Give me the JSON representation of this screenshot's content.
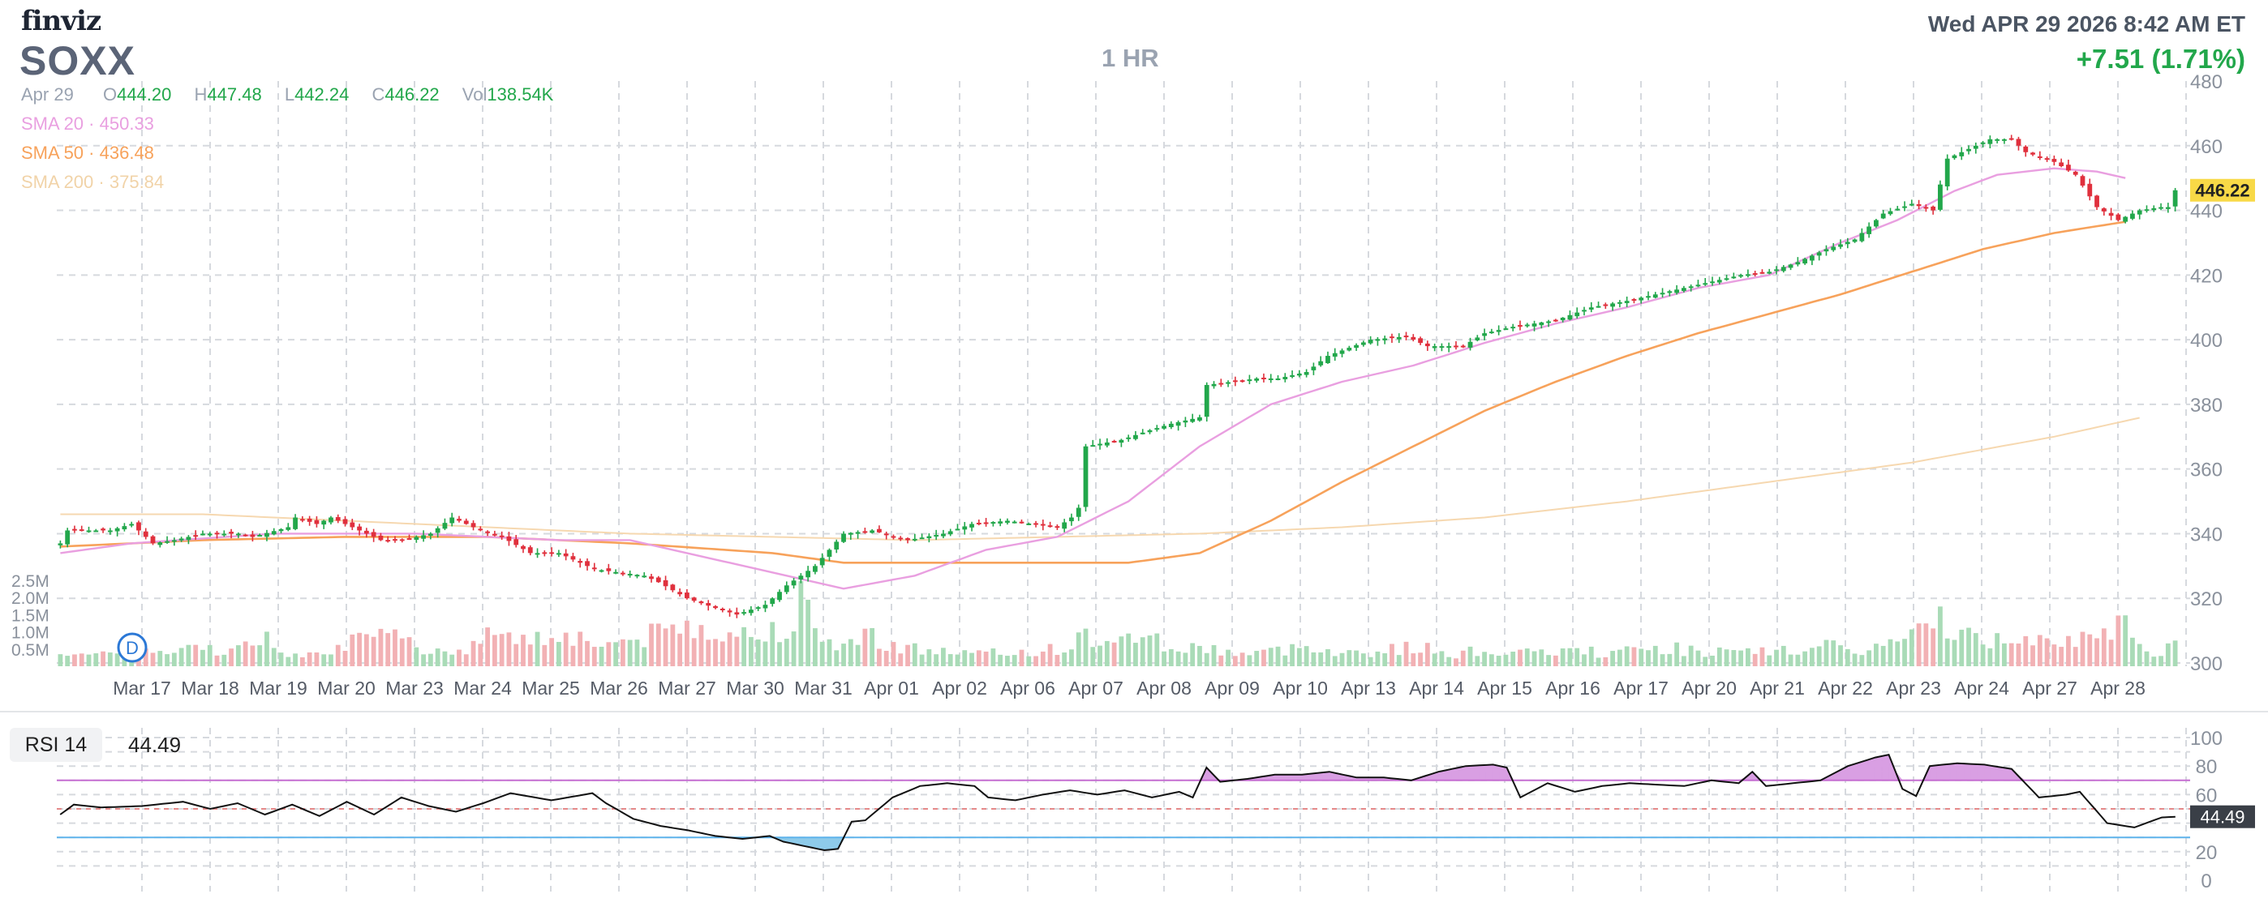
{
  "header": {
    "logo": "finviz",
    "ticker": "SOXX",
    "timeframe": "1 HR",
    "datetime": "Wed APR 29 2026 8:42 AM ET",
    "change": "+7.51 (1.71%)"
  },
  "ohlc": {
    "date": "Apr 29",
    "open_label": "O",
    "open": "444.20",
    "high_label": "H",
    "high": "447.48",
    "low_label": "L",
    "low": "442.24",
    "close_label": "C",
    "close": "446.22",
    "vol_label": "Vol",
    "vol": "138.54K"
  },
  "sma": [
    {
      "label": "SMA 20",
      "value": "450.33",
      "color": "#e99fe0"
    },
    {
      "label": "SMA 50",
      "value": "436.48",
      "color": "#f7a25b"
    },
    {
      "label": "SMA 200",
      "value": "375.84",
      "color": "#f6d8b0"
    }
  ],
  "colors": {
    "up": "#22a74b",
    "down": "#e0303d",
    "vol_up": "#a9dbb7",
    "vol_down": "#f2b1b4",
    "rsi_line": "#111111",
    "rsi_over": "#d99fe3",
    "rsi_under": "#8ecbea",
    "last_price_bg": "#f8d947"
  },
  "rsi": {
    "label": "RSI 14",
    "value": "44.49",
    "last_tag": "44.49"
  },
  "markers": {
    "dividend": "D"
  },
  "last_price_tag": "446.22",
  "chart_data": {
    "type": "candlestick",
    "title": "SOXX",
    "price_axis": {
      "ticks": [
        300,
        320,
        340,
        360,
        380,
        400,
        420,
        440,
        460,
        480
      ],
      "ylim": [
        296,
        481
      ]
    },
    "volume_axis": {
      "ticks": [
        "0.5M",
        "1.0M",
        "1.5M",
        "2.0M",
        "2.5M"
      ]
    },
    "rsi_axis": {
      "ticks": [
        0,
        20,
        40,
        60,
        80,
        100
      ],
      "overbought": 70,
      "oversold": 30,
      "mid": 50
    },
    "dates": [
      "Mar 17",
      "Mar 18",
      "Mar 19",
      "Mar 20",
      "Mar 23",
      "Mar 24",
      "Mar 25",
      "Mar 26",
      "Mar 27",
      "Mar 30",
      "Mar 31",
      "Apr 01",
      "Apr 02",
      "Apr 06",
      "Apr 07",
      "Apr 08",
      "Apr 09",
      "Apr 10",
      "Apr 13",
      "Apr 14",
      "Apr 15",
      "Apr 16",
      "Apr 17",
      "Apr 20",
      "Apr 21",
      "Apr 22",
      "Apr 23",
      "Apr 24",
      "Apr 27",
      "Apr 28",
      "Apr 29"
    ],
    "close_anchors": [
      [
        0,
        337
      ],
      [
        1,
        341
      ],
      [
        7,
        341
      ],
      [
        10,
        343
      ],
      [
        13,
        337
      ],
      [
        16,
        338
      ],
      [
        20,
        340
      ],
      [
        25,
        340
      ],
      [
        27,
        339
      ],
      [
        32,
        342
      ],
      [
        33,
        345
      ],
      [
        36,
        343
      ],
      [
        38,
        345
      ],
      [
        40,
        343
      ],
      [
        45,
        338
      ],
      [
        48,
        338
      ],
      [
        52,
        340
      ],
      [
        55,
        345
      ],
      [
        58,
        342
      ],
      [
        62,
        339
      ],
      [
        66,
        334
      ],
      [
        70,
        334
      ],
      [
        75,
        329
      ],
      [
        82,
        327
      ],
      [
        84,
        325
      ],
      [
        88,
        320
      ],
      [
        92,
        317
      ],
      [
        95,
        315
      ],
      [
        99,
        318
      ],
      [
        102,
        324
      ],
      [
        106,
        330
      ],
      [
        110,
        340
      ],
      [
        114,
        341
      ],
      [
        119,
        338
      ],
      [
        124,
        340
      ],
      [
        128,
        343
      ],
      [
        133,
        344
      ],
      [
        140,
        342
      ],
      [
        142,
        345
      ],
      [
        143,
        348
      ],
      [
        144,
        367
      ],
      [
        149,
        369
      ],
      [
        153,
        372
      ],
      [
        156,
        374
      ],
      [
        160,
        376
      ],
      [
        161,
        386
      ],
      [
        168,
        388
      ],
      [
        171,
        388
      ],
      [
        175,
        390
      ],
      [
        178,
        395
      ],
      [
        184,
        400
      ],
      [
        189,
        401
      ],
      [
        192,
        398
      ],
      [
        197,
        398
      ],
      [
        200,
        402
      ],
      [
        204,
        404
      ],
      [
        210,
        406
      ],
      [
        215,
        410
      ],
      [
        220,
        412
      ],
      [
        224,
        414
      ],
      [
        228,
        416
      ],
      [
        232,
        418
      ],
      [
        236,
        420
      ],
      [
        240,
        421
      ],
      [
        244,
        424
      ],
      [
        248,
        428
      ],
      [
        252,
        431
      ],
      [
        256,
        439
      ],
      [
        260,
        442
      ],
      [
        263,
        440
      ],
      [
        265,
        456
      ],
      [
        268,
        459
      ],
      [
        271,
        462
      ],
      [
        274,
        462
      ],
      [
        276,
        458
      ],
      [
        280,
        455
      ],
      [
        283,
        451
      ],
      [
        286,
        441
      ],
      [
        289,
        437
      ],
      [
        292,
        440
      ],
      [
        295,
        441
      ],
      [
        297,
        441
      ]
    ],
    "volume_anchors": [
      [
        0,
        0.55
      ],
      [
        5,
        0.3
      ],
      [
        10,
        0.5
      ],
      [
        15,
        0.4
      ],
      [
        20,
        0.6
      ],
      [
        25,
        0.5
      ],
      [
        28,
        1.0
      ],
      [
        32,
        0.4
      ],
      [
        38,
        0.6
      ],
      [
        42,
        0.8
      ],
      [
        48,
        0.9
      ],
      [
        52,
        0.5
      ],
      [
        58,
        0.6
      ],
      [
        62,
        1.3
      ],
      [
        66,
        0.8
      ],
      [
        70,
        1.1
      ],
      [
        76,
        0.7
      ],
      [
        82,
        0.9
      ],
      [
        86,
        1.2
      ],
      [
        90,
        1.3
      ],
      [
        94,
        1.1
      ],
      [
        98,
        0.9
      ],
      [
        102,
        1.4
      ],
      [
        104,
        2.2
      ],
      [
        106,
        0.9
      ],
      [
        110,
        0.7
      ],
      [
        114,
        1.0
      ],
      [
        118,
        0.6
      ],
      [
        122,
        0.5
      ],
      [
        128,
        0.4
      ],
      [
        132,
        0.4
      ],
      [
        138,
        0.5
      ],
      [
        142,
        0.6
      ],
      [
        144,
        1.0
      ],
      [
        148,
        0.6
      ],
      [
        152,
        1.2
      ],
      [
        156,
        0.5
      ],
      [
        160,
        0.6
      ],
      [
        166,
        0.4
      ],
      [
        172,
        0.5
      ],
      [
        176,
        0.7
      ],
      [
        180,
        0.4
      ],
      [
        186,
        0.5
      ],
      [
        190,
        0.6
      ],
      [
        196,
        0.4
      ],
      [
        200,
        0.5
      ],
      [
        206,
        0.4
      ],
      [
        212,
        0.5
      ],
      [
        218,
        0.4
      ],
      [
        224,
        0.6
      ],
      [
        230,
        0.5
      ],
      [
        236,
        0.4
      ],
      [
        242,
        0.5
      ],
      [
        248,
        0.6
      ],
      [
        254,
        0.5
      ],
      [
        258,
        0.8
      ],
      [
        262,
        1.1
      ],
      [
        264,
        1.6
      ],
      [
        266,
        1.2
      ],
      [
        268,
        0.9
      ],
      [
        272,
        0.8
      ],
      [
        276,
        1.0
      ],
      [
        278,
        1.1
      ],
      [
        282,
        0.9
      ],
      [
        286,
        0.7
      ],
      [
        288,
        1.4
      ],
      [
        290,
        1.2
      ],
      [
        292,
        0.6
      ],
      [
        295,
        0.4
      ],
      [
        297,
        0.9
      ]
    ],
    "rsi_anchors": [
      [
        0,
        46
      ],
      [
        2,
        53
      ],
      [
        6,
        51
      ],
      [
        12,
        52
      ],
      [
        18,
        55
      ],
      [
        22,
        50
      ],
      [
        26,
        54
      ],
      [
        30,
        46
      ],
      [
        34,
        53
      ],
      [
        38,
        45
      ],
      [
        42,
        55
      ],
      [
        46,
        46
      ],
      [
        50,
        58
      ],
      [
        54,
        52
      ],
      [
        58,
        48
      ],
      [
        62,
        54
      ],
      [
        66,
        61
      ],
      [
        72,
        56
      ],
      [
        78,
        61
      ],
      [
        80,
        54
      ],
      [
        84,
        43
      ],
      [
        88,
        38
      ],
      [
        92,
        35
      ],
      [
        96,
        31
      ],
      [
        100,
        29
      ],
      [
        104,
        31
      ],
      [
        106,
        27
      ],
      [
        108,
        25
      ],
      [
        110,
        23
      ],
      [
        112,
        21
      ],
      [
        114,
        22
      ],
      [
        116,
        41
      ],
      [
        118,
        42
      ],
      [
        122,
        58
      ],
      [
        126,
        66
      ],
      [
        130,
        68
      ],
      [
        134,
        66
      ],
      [
        136,
        58
      ],
      [
        140,
        56
      ],
      [
        144,
        60
      ],
      [
        148,
        63
      ],
      [
        152,
        60
      ],
      [
        156,
        63
      ],
      [
        160,
        58
      ],
      [
        164,
        62
      ],
      [
        166,
        58
      ],
      [
        168,
        79
      ],
      [
        170,
        69
      ],
      [
        174,
        71
      ],
      [
        178,
        74
      ],
      [
        182,
        74
      ],
      [
        186,
        76
      ],
      [
        190,
        72
      ],
      [
        194,
        72
      ],
      [
        198,
        70
      ],
      [
        202,
        76
      ],
      [
        206,
        80
      ],
      [
        210,
        81
      ],
      [
        212,
        79
      ],
      [
        214,
        58
      ],
      [
        218,
        68
      ],
      [
        222,
        62
      ],
      [
        226,
        66
      ],
      [
        230,
        68
      ],
      [
        234,
        67
      ],
      [
        238,
        66
      ],
      [
        242,
        70
      ],
      [
        246,
        68
      ],
      [
        248,
        76
      ],
      [
        250,
        66
      ],
      [
        254,
        68
      ],
      [
        258,
        70
      ],
      [
        262,
        80
      ],
      [
        266,
        86
      ],
      [
        268,
        88
      ],
      [
        270,
        64
      ],
      [
        272,
        59
      ],
      [
        274,
        80
      ],
      [
        278,
        82
      ],
      [
        282,
        81
      ],
      [
        286,
        78
      ],
      [
        290,
        58
      ],
      [
        294,
        60
      ],
      [
        296,
        62
      ],
      [
        300,
        40
      ],
      [
        304,
        37
      ],
      [
        308,
        44
      ],
      [
        310,
        44.49
      ]
    ],
    "n_bars": 298,
    "last_close": 446.22,
    "sma20_anchors": [
      [
        0,
        334
      ],
      [
        10,
        337
      ],
      [
        30,
        340
      ],
      [
        50,
        340
      ],
      [
        70,
        338
      ],
      [
        80,
        338
      ],
      [
        90,
        333
      ],
      [
        110,
        323
      ],
      [
        120,
        327
      ],
      [
        130,
        335
      ],
      [
        140,
        339
      ],
      [
        150,
        350
      ],
      [
        160,
        367
      ],
      [
        170,
        380
      ],
      [
        180,
        387
      ],
      [
        190,
        392
      ],
      [
        200,
        399
      ],
      [
        210,
        405
      ],
      [
        220,
        410
      ],
      [
        230,
        416
      ],
      [
        240,
        420
      ],
      [
        250,
        430
      ],
      [
        258,
        437
      ],
      [
        266,
        446
      ],
      [
        272,
        451
      ],
      [
        280,
        453
      ],
      [
        286,
        452
      ],
      [
        290,
        450
      ]
    ],
    "sma50_anchors": [
      [
        0,
        336
      ],
      [
        20,
        338
      ],
      [
        40,
        339
      ],
      [
        60,
        339
      ],
      [
        80,
        337
      ],
      [
        100,
        334
      ],
      [
        110,
        331
      ],
      [
        150,
        331
      ],
      [
        160,
        334
      ],
      [
        170,
        344
      ],
      [
        180,
        356
      ],
      [
        190,
        367
      ],
      [
        200,
        378
      ],
      [
        210,
        387
      ],
      [
        220,
        395
      ],
      [
        230,
        402
      ],
      [
        240,
        408
      ],
      [
        250,
        414
      ],
      [
        260,
        421
      ],
      [
        270,
        428
      ],
      [
        280,
        433
      ],
      [
        290,
        436.48
      ]
    ],
    "sma200_anchors": [
      [
        0,
        346
      ],
      [
        20,
        346
      ],
      [
        40,
        344
      ],
      [
        60,
        342
      ],
      [
        80,
        340
      ],
      [
        100,
        339
      ],
      [
        120,
        338
      ],
      [
        140,
        339
      ],
      [
        160,
        340
      ],
      [
        180,
        342
      ],
      [
        200,
        345
      ],
      [
        220,
        350
      ],
      [
        240,
        356
      ],
      [
        260,
        362
      ],
      [
        280,
        370
      ],
      [
        292,
        375.84
      ]
    ]
  }
}
